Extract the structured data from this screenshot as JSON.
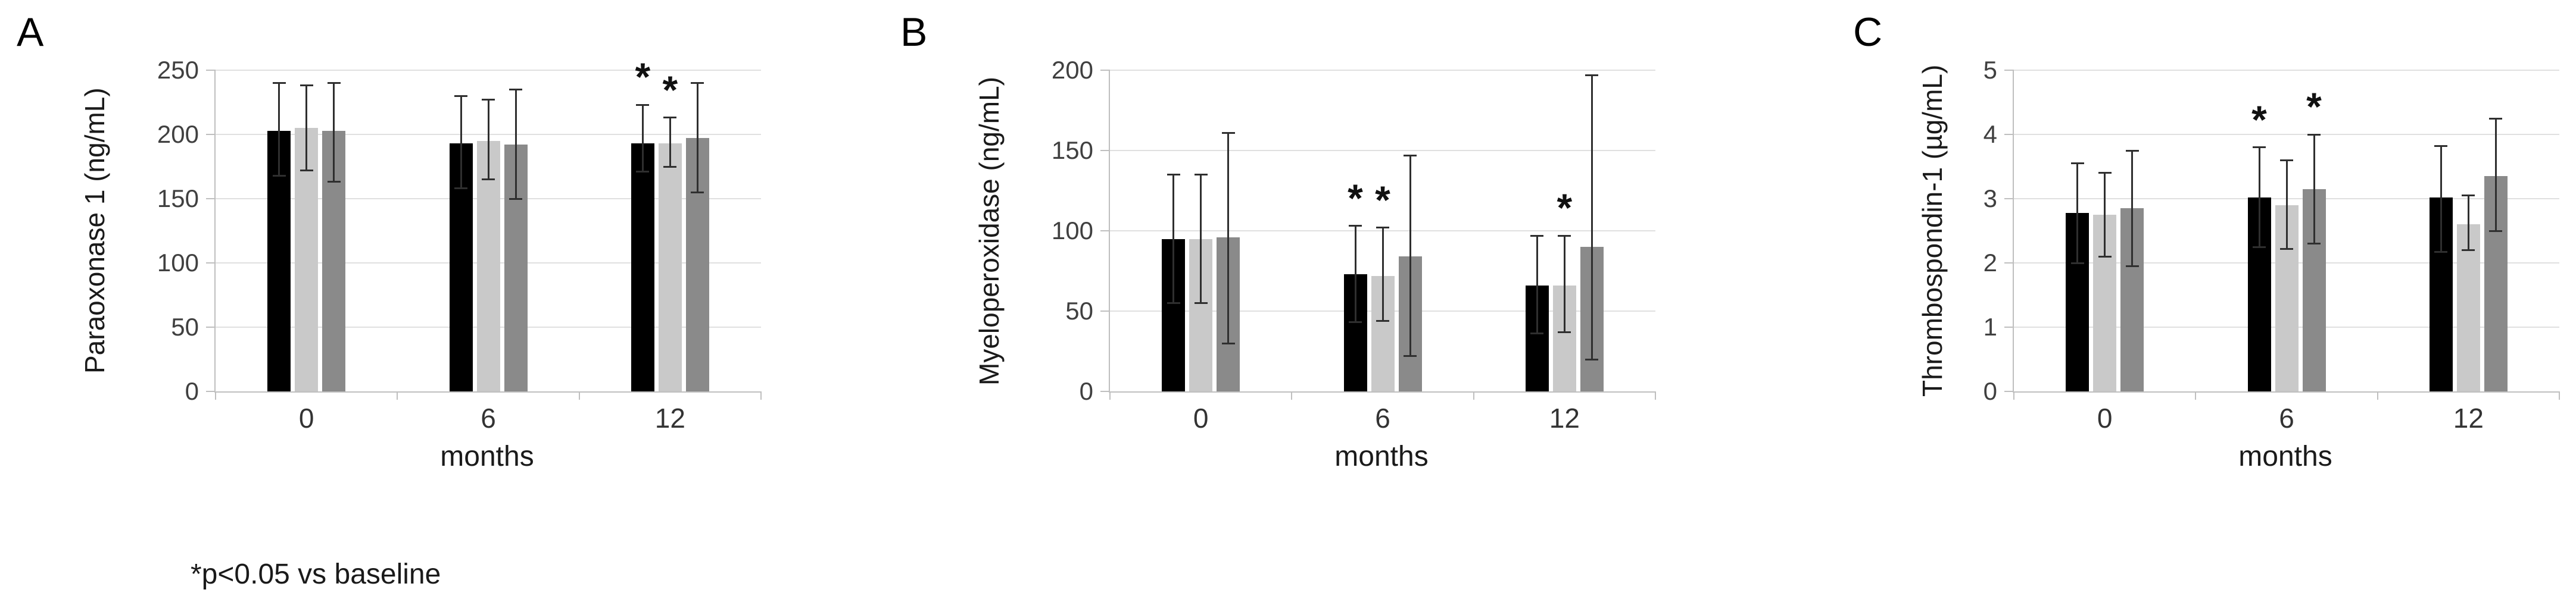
{
  "footnote": "*p<0.05 vs baseline",
  "panels": [
    {
      "letter": "A"
    },
    {
      "letter": "B"
    },
    {
      "letter": "C"
    }
  ],
  "colors": {
    "bar_black": "#000000",
    "bar_light_gray": "#c9c9c9",
    "bar_dark_gray": "#8a8a8a",
    "gridline": "#e0e0e0",
    "axis": "#bfbfbf",
    "error_bar": "#2f2f2f"
  },
  "chart_data": [
    {
      "type": "bar",
      "title": "",
      "ylabel": "Paraoxonase 1 (ng/mL)",
      "xlabel": "months",
      "categories": [
        "0",
        "6",
        "12"
      ],
      "ylim": [
        0,
        250
      ],
      "yticks": [
        0,
        50,
        100,
        150,
        200,
        250
      ],
      "grid": true,
      "legend": "none",
      "series": [
        {
          "name": "black",
          "color": "#000000",
          "values": [
            203,
            193,
            193
          ],
          "err_up": [
            37,
            37,
            30
          ],
          "err_down": [
            35,
            35,
            22
          ],
          "sig": [
            false,
            false,
            true
          ]
        },
        {
          "name": "light-gray",
          "color": "#c9c9c9",
          "values": [
            205,
            195,
            193
          ],
          "err_up": [
            33,
            32,
            20
          ],
          "err_down": [
            33,
            30,
            18
          ],
          "sig": [
            false,
            false,
            true
          ]
        },
        {
          "name": "dark-gray",
          "color": "#8a8a8a",
          "values": [
            203,
            192,
            197
          ],
          "err_up": [
            37,
            43,
            43
          ],
          "err_down": [
            40,
            42,
            42
          ],
          "sig": [
            false,
            false,
            false
          ]
        }
      ]
    },
    {
      "type": "bar",
      "title": "",
      "ylabel": "Myeloperoxidase (ng/mL)",
      "xlabel": "months",
      "categories": [
        "0",
        "6",
        "12"
      ],
      "ylim": [
        0,
        200
      ],
      "yticks": [
        0,
        50,
        100,
        150,
        200
      ],
      "grid": true,
      "legend": "none",
      "series": [
        {
          "name": "black",
          "color": "#000000",
          "values": [
            95,
            73,
            66
          ],
          "err_up": [
            40,
            30,
            31
          ],
          "err_down": [
            40,
            30,
            30
          ],
          "sig": [
            false,
            true,
            false
          ]
        },
        {
          "name": "light-gray",
          "color": "#c9c9c9",
          "values": [
            95,
            72,
            66
          ],
          "err_up": [
            40,
            30,
            31
          ],
          "err_down": [
            40,
            28,
            29
          ],
          "sig": [
            false,
            true,
            true
          ]
        },
        {
          "name": "dark-gray",
          "color": "#8a8a8a",
          "values": [
            96,
            84,
            90
          ],
          "err_up": [
            65,
            63,
            107
          ],
          "err_down": [
            66,
            62,
            70
          ],
          "sig": [
            false,
            false,
            false
          ]
        }
      ]
    },
    {
      "type": "bar",
      "title": "",
      "ylabel": "Thrombospondin-1 (µg/mL)",
      "xlabel": "months",
      "categories": [
        "0",
        "6",
        "12"
      ],
      "ylim": [
        0,
        5
      ],
      "yticks": [
        0,
        1,
        2,
        3,
        4,
        5
      ],
      "grid": true,
      "legend": "none",
      "series": [
        {
          "name": "black",
          "color": "#000000",
          "values": [
            2.78,
            3.02,
            3.02
          ],
          "err_up": [
            0.77,
            0.78,
            0.8
          ],
          "err_down": [
            0.78,
            0.77,
            0.85
          ],
          "sig": [
            false,
            true,
            false
          ]
        },
        {
          "name": "light-gray",
          "color": "#c9c9c9",
          "values": [
            2.75,
            2.9,
            2.6
          ],
          "err_up": [
            0.65,
            0.7,
            0.45
          ],
          "err_down": [
            0.65,
            0.68,
            0.4
          ],
          "sig": [
            false,
            false,
            false
          ]
        },
        {
          "name": "dark-gray",
          "color": "#8a8a8a",
          "values": [
            2.85,
            3.15,
            3.35
          ],
          "err_up": [
            0.9,
            0.85,
            0.9
          ],
          "err_down": [
            0.9,
            0.85,
            0.85
          ],
          "sig": [
            false,
            true,
            false
          ]
        }
      ]
    }
  ]
}
